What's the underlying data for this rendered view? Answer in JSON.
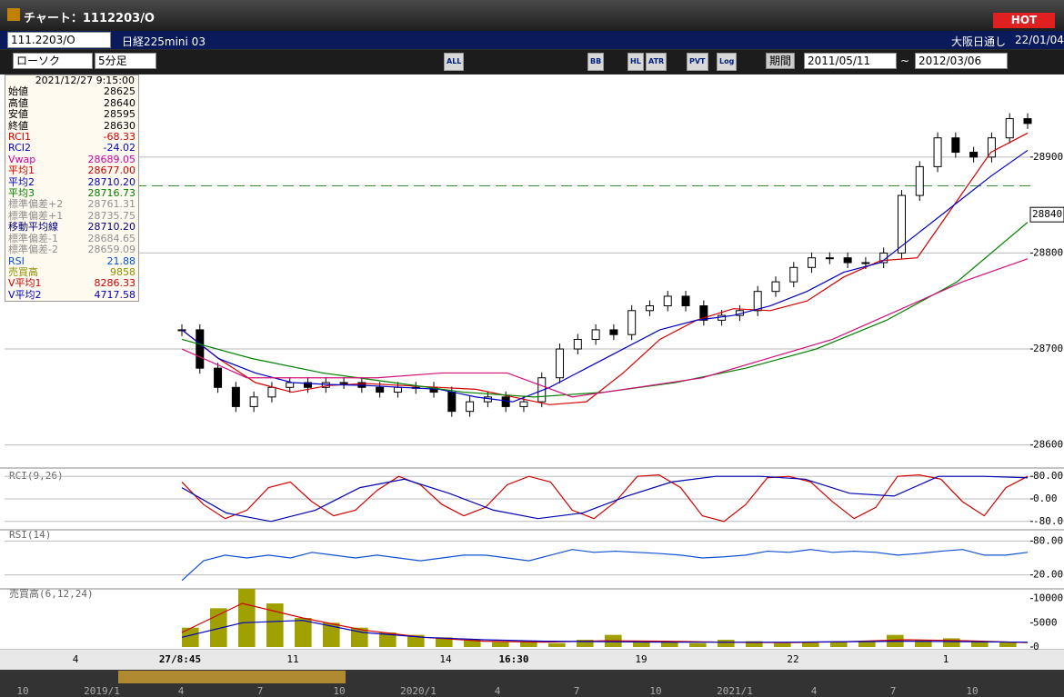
{
  "window": {
    "title": "チャート：1112203/O",
    "hot": "HOT"
  },
  "symbol_bar": {
    "code": "111.2203/O",
    "name": "日経225mini 03",
    "session": "大阪日通し",
    "date": "22/01/04"
  },
  "toolbar": {
    "chart_style": "ローソク",
    "interval": "5分足",
    "buttons": [
      "ALL",
      "BB",
      "HL",
      "ATR",
      "PVT",
      "Log"
    ],
    "period": "期間",
    "from": "2011/05/11",
    "tilde": "~",
    "to": "2012/03/06"
  },
  "info_panel": {
    "datetime": "2021/12/27 9:15:00",
    "rows": [
      {
        "label": "始値",
        "value": "28625",
        "color": "#000000"
      },
      {
        "label": "高値",
        "value": "28640",
        "color": "#000000"
      },
      {
        "label": "安値",
        "value": "28595",
        "color": "#000000"
      },
      {
        "label": "終値",
        "value": "28630",
        "color": "#000000"
      },
      {
        "label": "RCI1",
        "value": "-68.33",
        "color": "#d00000"
      },
      {
        "label": "RCI2",
        "value": "-24.02",
        "color": "#0000c0"
      },
      {
        "label": "Vwap",
        "value": "28689.05",
        "color": "#d000a0"
      },
      {
        "label": "平均1",
        "value": "28677.00",
        "color": "#d00000"
      },
      {
        "label": "平均2",
        "value": "28710.20",
        "color": "#0000c0"
      },
      {
        "label": "平均3",
        "value": "28716.73",
        "color": "#008000"
      },
      {
        "label": "標準偏差+2",
        "value": "28761.31",
        "color": "#909090"
      },
      {
        "label": "標準偏差+1",
        "value": "28735.75",
        "color": "#909090"
      },
      {
        "label": "移動平均線",
        "value": "28710.20",
        "color": "#000080"
      },
      {
        "label": "標準偏差-1",
        "value": "28684.65",
        "color": "#909090"
      },
      {
        "label": "標準偏差-2",
        "value": "28659.09",
        "color": "#909090"
      },
      {
        "label": "RSI",
        "value": "21.88",
        "color": "#0050d0"
      },
      {
        "label": "売買高",
        "value": "9858",
        "color": "#909000"
      },
      {
        "label": "V平均1",
        "value": "8286.33",
        "color": "#d00000"
      },
      {
        "label": "V平均2",
        "value": "4717.58",
        "color": "#0000c0"
      }
    ]
  },
  "chart_data": {
    "type": "candlestick",
    "close": [
      28720,
      28680,
      28660,
      28640,
      28650,
      28660,
      28665,
      28660,
      28665,
      28665,
      28660,
      28655,
      28660,
      28660,
      28655,
      28635,
      28645,
      28650,
      28640,
      28645,
      28670,
      28700,
      28710,
      28720,
      28715,
      28740,
      28745,
      28755,
      28745,
      28730,
      28735,
      28740,
      28760,
      28770,
      28785,
      28795,
      28795,
      28790,
      28790,
      28800,
      28860,
      28890,
      28920,
      28905,
      28900,
      28920,
      28940,
      28935
    ],
    "series": [
      {
        "color": "#d00000",
        "values": [
          28720,
          28690,
          28665,
          28655,
          28662,
          28664,
          28662,
          28660,
          28658,
          28650,
          28642,
          28645,
          28675,
          28710,
          28730,
          28742,
          28740,
          28750,
          28775,
          28792,
          28795,
          28850,
          28905,
          28925
        ]
      },
      {
        "color": "#0000c0",
        "values": [
          28720,
          28690,
          28675,
          28665,
          28663,
          28662,
          28660,
          28658,
          28650,
          28645,
          28660,
          28680,
          28700,
          28720,
          28730,
          28735,
          28745,
          28760,
          28780,
          28790,
          28820,
          28850,
          28880,
          28907
        ]
      },
      {
        "color": "#008000",
        "values": [
          28710,
          28690,
          28675,
          28665,
          28655,
          28650,
          28655,
          28665,
          28680,
          28700,
          28730,
          28770,
          28832
        ]
      },
      {
        "color": "#d0107a",
        "values": [
          28700,
          28670,
          28670,
          28670,
          28675,
          28675,
          28650,
          28660,
          28670,
          28690,
          28710,
          28740,
          28770,
          28794
        ]
      }
    ],
    "ylim": [
      28576,
      28986
    ],
    "yticks": [
      28600,
      28700,
      28800,
      28900
    ],
    "last_price": 28840,
    "dashed_level": 28870,
    "xlabels": [
      "4",
      "27/8:45",
      "11",
      "14",
      "16:30",
      "19",
      "22",
      "1"
    ],
    "rci": {
      "label": "RCI(9,26)",
      "ylim": [
        -100,
        100
      ],
      "yticks": [
        {
          "value": 80,
          "label": "80.00"
        },
        {
          "value": 0,
          "label": "0.00"
        },
        {
          "value": -80,
          "label": "-80.00"
        }
      ],
      "series": [
        {
          "color": "#d00000",
          "values": [
            60,
            -20,
            -70,
            -40,
            40,
            60,
            -10,
            -60,
            -40,
            30,
            80,
            50,
            -20,
            -60,
            -30,
            50,
            80,
            60,
            -40,
            -70,
            -10,
            80,
            85,
            40,
            -60,
            -80,
            -20,
            75,
            80,
            60,
            -10,
            -70,
            -30,
            80,
            85,
            70,
            -10,
            -60,
            40,
            80
          ]
        },
        {
          "color": "#0000b0",
          "values": [
            40,
            -50,
            -80,
            -40,
            40,
            70,
            20,
            -40,
            -70,
            -50,
            10,
            60,
            80,
            80,
            70,
            20,
            10,
            80,
            80,
            75
          ]
        }
      ]
    },
    "rsi": {
      "label": "RSI(14)",
      "ylim": [
        0,
        100
      ],
      "yticks": [
        {
          "value": 80,
          "label": "80.00"
        },
        {
          "value": 20,
          "label": "20.00"
        }
      ],
      "series": [
        {
          "color": "#1050d0",
          "values": [
            10,
            45,
            55,
            50,
            55,
            50,
            60,
            55,
            50,
            55,
            50,
            45,
            50,
            55,
            55,
            50,
            45,
            55,
            65,
            60,
            62,
            60,
            58,
            55,
            50,
            52,
            55,
            62,
            60,
            65,
            60,
            62,
            60,
            55,
            58,
            62,
            65,
            55,
            55,
            60
          ]
        }
      ]
    },
    "volume": {
      "label": "売買高(6,12,24)",
      "ylim": [
        0,
        12000
      ],
      "yticks": [
        0,
        5000,
        10000
      ],
      "color": "#a0a000",
      "values": [
        4000,
        8000,
        12000,
        9000,
        6000,
        5000,
        4000,
        3000,
        2500,
        2000,
        1500,
        1000,
        1200,
        800,
        1500,
        2500,
        1200,
        1000,
        800,
        1500,
        1200,
        800,
        900,
        1000,
        1200,
        2500,
        1500,
        1800,
        1200,
        1000
      ],
      "series": [
        {
          "color": "#d00000",
          "values": [
            3000,
            9000,
            6000,
            3500,
            2000,
            1200,
            1000,
            1300,
            1200,
            1000,
            900,
            1100,
            1500,
            1300,
            900
          ]
        },
        {
          "color": "#0000c0",
          "values": [
            2000,
            5000,
            5500,
            3000,
            2000,
            1500,
            1200,
            1100,
            1000,
            1000,
            1000,
            1100,
            1200,
            1100,
            1000
          ]
        }
      ]
    }
  },
  "navigator": {
    "labels": [
      "10",
      "2019/1",
      "4",
      "7",
      "10",
      "2020/1",
      "4",
      "7",
      "10",
      "2021/1",
      "4",
      "7",
      "10"
    ]
  }
}
